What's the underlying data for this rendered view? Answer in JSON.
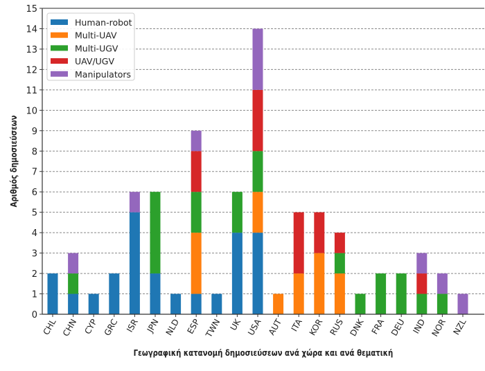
{
  "chart_data": {
    "type": "bar",
    "stacked": true,
    "title": "",
    "xlabel": "Γεωγραφική κατανομή δημοσιεύσεων ανά χώρα και ανά θεματική",
    "ylabel": "Αριθμός δημοσιεύσεων",
    "ylim": [
      0,
      15
    ],
    "yticks": [
      0,
      1,
      2,
      3,
      4,
      5,
      6,
      7,
      8,
      9,
      10,
      11,
      12,
      13,
      14,
      15
    ],
    "grid": "horizontal dashed",
    "legend_position": "top-left",
    "categories": [
      "CHL",
      "CHN",
      "CYP",
      "GRC",
      "ISR",
      "JPN",
      "NLD",
      "ESP",
      "TWN",
      "UK",
      "USA",
      "AUT",
      "ITA",
      "KOR",
      "RUS",
      "DNK",
      "FRA",
      "DEU",
      "IND",
      "NOR",
      "NZL"
    ],
    "series": [
      {
        "name": "Human-robot",
        "color": "#1f77b4",
        "values": [
          2,
          1,
          1,
          2,
          5,
          2,
          1,
          1,
          1,
          4,
          4,
          0,
          0,
          0,
          0,
          0,
          0,
          0,
          0,
          0,
          0
        ]
      },
      {
        "name": "Multi-UAV",
        "color": "#ff7f0e",
        "values": [
          0,
          0,
          0,
          0,
          0,
          0,
          0,
          3,
          0,
          0,
          2,
          1,
          2,
          3,
          2,
          0,
          0,
          0,
          0,
          0,
          0
        ]
      },
      {
        "name": "Multi-UGV",
        "color": "#2ca02c",
        "values": [
          0,
          1,
          0,
          0,
          0,
          4,
          0,
          2,
          0,
          2,
          2,
          0,
          0,
          0,
          1,
          1,
          2,
          2,
          1,
          1,
          0
        ]
      },
      {
        "name": "UAV/UGV",
        "color": "#d62728",
        "values": [
          0,
          0,
          0,
          0,
          0,
          0,
          0,
          2,
          0,
          0,
          3,
          0,
          3,
          2,
          1,
          0,
          0,
          0,
          1,
          0,
          0
        ]
      },
      {
        "name": "Manipulators",
        "color": "#9467bd",
        "values": [
          0,
          1,
          0,
          0,
          1,
          0,
          0,
          1,
          0,
          0,
          3,
          0,
          0,
          0,
          0,
          0,
          0,
          0,
          1,
          1,
          1
        ]
      }
    ]
  }
}
